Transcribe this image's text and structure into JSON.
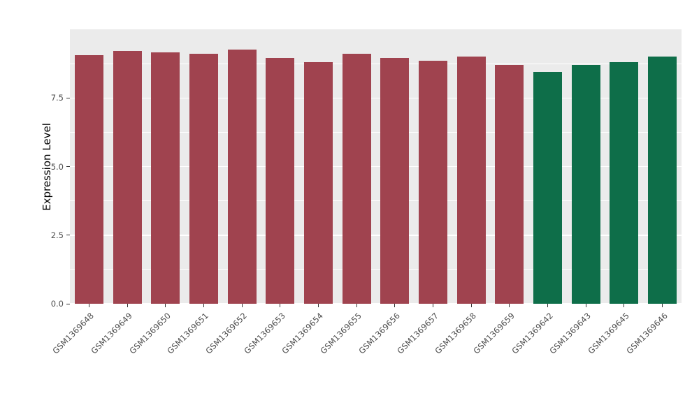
{
  "chart_data": {
    "type": "bar",
    "title": "",
    "xlabel": "",
    "ylabel": "Expression Level",
    "categories": [
      "GSM1369648",
      "GSM1369649",
      "GSM1369650",
      "GSM1369651",
      "GSM1369652",
      "GSM1369653",
      "GSM1369654",
      "GSM1369655",
      "GSM1369656",
      "GSM1369657",
      "GSM1369658",
      "GSM1369659",
      "GSM1369642",
      "GSM1369643",
      "GSM1369645",
      "GSM1369646"
    ],
    "values": [
      9.05,
      9.2,
      9.15,
      9.1,
      9.25,
      8.95,
      8.8,
      9.1,
      8.95,
      8.85,
      9.0,
      8.7,
      8.45,
      8.7,
      8.8,
      9.0
    ],
    "groups": [
      "group1",
      "group1",
      "group1",
      "group1",
      "group1",
      "group1",
      "group1",
      "group1",
      "group1",
      "group1",
      "group1",
      "group1",
      "group2",
      "group2",
      "group2",
      "group2"
    ],
    "group_colors": {
      "group1": "#A0434F",
      "group2": "#0E6E49"
    },
    "ylim": [
      0,
      10
    ],
    "yticks": [
      0,
      2.5,
      5,
      7.5
    ],
    "ytick_labels": [
      "0.0",
      "2.5",
      "5.0",
      "7.5"
    ],
    "minor_yticks": [
      1.25,
      3.75,
      6.25,
      8.75
    ],
    "grid": true,
    "legend": "none",
    "panel_bg": "#EBEBEB",
    "grid_color": "#FFFFFF",
    "tick_label_color": "#4D4D4D"
  }
}
